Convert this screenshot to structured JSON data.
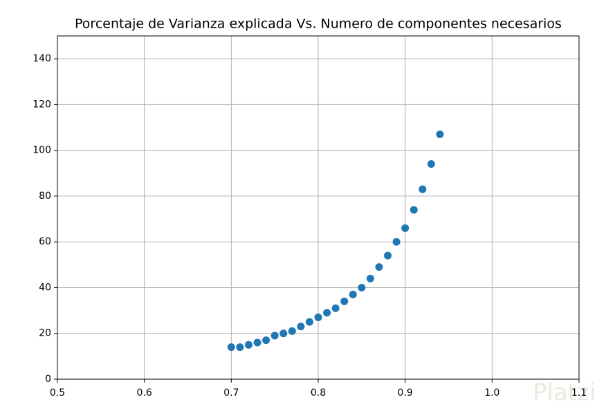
{
  "chart_data": {
    "type": "scatter",
    "title": "Porcentaje de Varianza explicada Vs. Numero de componentes necesarios",
    "x": [
      0.7,
      0.71,
      0.72,
      0.73,
      0.74,
      0.75,
      0.76,
      0.77,
      0.78,
      0.79,
      0.8,
      0.81,
      0.82,
      0.83,
      0.84,
      0.85,
      0.86,
      0.87,
      0.88,
      0.89,
      0.9,
      0.91,
      0.92,
      0.93,
      0.94
    ],
    "values": [
      14,
      14,
      15,
      16,
      17,
      19,
      20,
      21,
      23,
      25,
      27,
      29,
      31,
      34,
      37,
      40,
      44,
      49,
      54,
      60,
      66,
      74,
      83,
      94,
      107
    ],
    "color": "#1f77b4",
    "xlim": [
      0.5,
      1.1
    ],
    "xticks": [
      0.5,
      0.6,
      0.7,
      0.8,
      0.9,
      {
        "value": 1,
        "label": "1.0"
      },
      1.1
    ],
    "ylim": [
      0,
      150
    ],
    "yticks": [
      0,
      20,
      40,
      60,
      80,
      100,
      120,
      140
    ],
    "grid": true,
    "watermark": "Platzi"
  }
}
